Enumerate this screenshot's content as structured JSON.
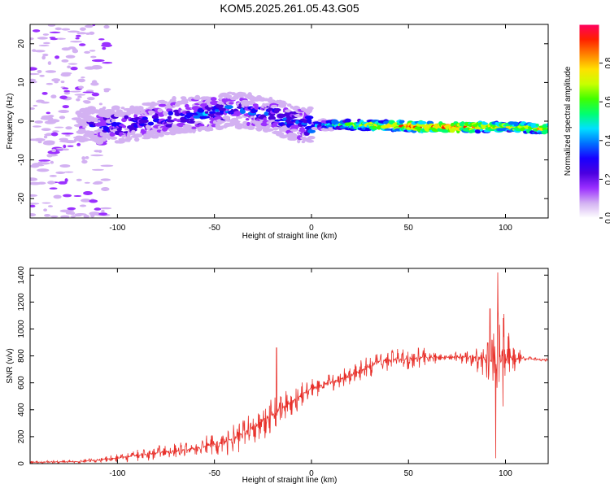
{
  "title": "KOM5.2025.261.05.43.G05",
  "chart_data": [
    {
      "type": "heatmap",
      "xlabel": "Height of straight line (km)",
      "ylabel": "Frequency (Hz)",
      "xlim": [
        -145,
        122
      ],
      "ylim": [
        -25,
        25
      ],
      "xticks": [
        -100,
        -50,
        0,
        50,
        100
      ],
      "yticks": [
        -20,
        -10,
        0,
        10,
        20
      ],
      "colorbar": {
        "label": "Normalized spectral amplitude",
        "range": [
          0,
          1
        ],
        "ticks": [
          "0.0",
          "0.2",
          "0.4",
          "0.6",
          "0.8"
        ],
        "colors": [
          "#ffffff",
          "#d3b1f2",
          "#9b30ff",
          "#4b00e0",
          "#1800ff",
          "#0070ff",
          "#00e0ff",
          "#00ff70",
          "#40ff00",
          "#c8ff00",
          "#ffe000",
          "#ff8000",
          "#ff2000",
          "#ff0060"
        ]
      },
      "ridge": [
        {
          "x": -115,
          "f": -1,
          "a": 0.25
        },
        {
          "x": -100,
          "f": -1,
          "a": 0.3
        },
        {
          "x": -85,
          "f": 0,
          "a": 0.3
        },
        {
          "x": -70,
          "f": 1.5,
          "a": 0.3
        },
        {
          "x": -55,
          "f": 2,
          "a": 0.35
        },
        {
          "x": -40,
          "f": 3,
          "a": 0.3
        },
        {
          "x": -25,
          "f": 2,
          "a": 0.3
        },
        {
          "x": -15,
          "f": 0.5,
          "a": 0.3
        },
        {
          "x": -5,
          "f": -1,
          "a": 0.35
        },
        {
          "x": 10,
          "f": -1,
          "a": 0.5
        },
        {
          "x": 30,
          "f": -1,
          "a": 0.7
        },
        {
          "x": 60,
          "f": -1.5,
          "a": 0.85
        },
        {
          "x": 80,
          "f": -1.5,
          "a": 0.85
        },
        {
          "x": 100,
          "f": -1.5,
          "a": 0.7
        },
        {
          "x": 122,
          "f": -2,
          "a": 0.75
        }
      ]
    },
    {
      "type": "line",
      "xlabel": "Height of straight line (km)",
      "ylabel": "SNR (v/v)",
      "xlim": [
        -145,
        122
      ],
      "ylim": [
        0,
        1450
      ],
      "xticks": [
        -100,
        -50,
        0,
        50,
        100
      ],
      "yticks": [
        0,
        200,
        400,
        600,
        800,
        1000,
        1200,
        1400
      ],
      "color": "#e8302a",
      "envelope": [
        {
          "x": -145,
          "mean": 10,
          "amp": 10
        },
        {
          "x": -120,
          "mean": 15,
          "amp": 15
        },
        {
          "x": -100,
          "mean": 40,
          "amp": 30
        },
        {
          "x": -80,
          "mean": 80,
          "amp": 60
        },
        {
          "x": -60,
          "mean": 110,
          "amp": 70
        },
        {
          "x": -40,
          "mean": 180,
          "amp": 120
        },
        {
          "x": -25,
          "mean": 320,
          "amp": 180
        },
        {
          "x": -10,
          "mean": 460,
          "amp": 120
        },
        {
          "x": 0,
          "mean": 560,
          "amp": 80
        },
        {
          "x": 20,
          "mean": 650,
          "amp": 80
        },
        {
          "x": 35,
          "mean": 760,
          "amp": 90
        },
        {
          "x": 50,
          "mean": 780,
          "amp": 90
        },
        {
          "x": 60,
          "mean": 790,
          "amp": 80
        },
        {
          "x": 70,
          "mean": 790,
          "amp": 20
        },
        {
          "x": 85,
          "mean": 790,
          "amp": 100
        },
        {
          "x": 92,
          "mean": 760,
          "amp": 250
        },
        {
          "x": 97,
          "mean": 750,
          "amp": 500
        },
        {
          "x": 102,
          "mean": 780,
          "amp": 200
        },
        {
          "x": 110,
          "mean": 780,
          "amp": 20
        },
        {
          "x": 122,
          "mean": 770,
          "amp": 15
        }
      ],
      "spikes": [
        {
          "x": -18,
          "y": 860
        },
        {
          "x": 92,
          "y": 1150
        },
        {
          "x": 96,
          "y": 1420
        },
        {
          "x": 95,
          "y": 40
        }
      ]
    }
  ]
}
